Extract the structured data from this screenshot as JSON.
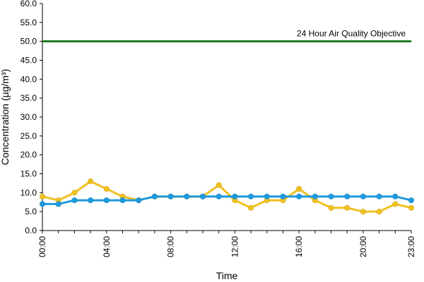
{
  "chart_data": {
    "type": "line",
    "xlabel": "Time",
    "ylabel": "Concentration (µg/m³)",
    "ylim": [
      0,
      60
    ],
    "yticks": [
      "0.0",
      "5.0",
      "10.0",
      "15.0",
      "20.0",
      "25.0",
      "30.0",
      "35.0",
      "40.0",
      "45.0",
      "50.0",
      "55.0",
      "60.0"
    ],
    "x": [
      "00:00",
      "01:00",
      "02:00",
      "03:00",
      "04:00",
      "05:00",
      "06:00",
      "07:00",
      "08:00",
      "09:00",
      "10:00",
      "11:00",
      "12:00",
      "13:00",
      "14:00",
      "15:00",
      "16:00",
      "17:00",
      "18:00",
      "19:00",
      "20:00",
      "21:00",
      "22:00",
      "23:00"
    ],
    "xtick_labels": [
      "00:00",
      "04:00",
      "08:00",
      "12:00",
      "16:00",
      "20:00",
      "23:00"
    ],
    "grid": false,
    "reference_line": {
      "value": 50,
      "label": "24 Hour Air Quality Objective",
      "color": "#1e7a1e"
    },
    "series": [
      {
        "color": "#f0c020",
        "values": [
          9,
          8,
          10,
          13,
          11,
          9,
          8,
          9,
          9,
          9,
          9,
          12,
          8,
          6,
          8,
          8,
          11,
          8,
          6,
          6,
          5,
          5,
          7,
          6
        ]
      },
      {
        "color": "#1e9ae0",
        "values": [
          7,
          7,
          8,
          8,
          8,
          8,
          8,
          9,
          9,
          9,
          9,
          9,
          9,
          9,
          9,
          9,
          9,
          9,
          9,
          9,
          9,
          9,
          9,
          8
        ]
      }
    ]
  }
}
